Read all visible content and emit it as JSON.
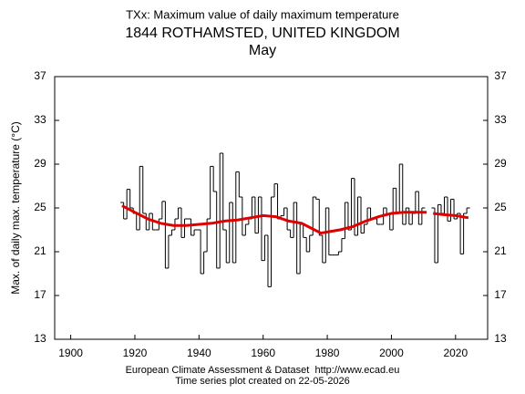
{
  "chart_data": {
    "type": "line",
    "title": "TXx: Maximum value of daily maximum temperature",
    "subtitle": "1844 ROTHAMSTED, UNITED KINGDOM",
    "period": "May",
    "y_label": "Max. of daily max. temperature (°C)",
    "footer": [
      "European Climate Assessment & Dataset  http://www.ecad.eu",
      "Time series plot created on 22-05-2026"
    ],
    "xlim": [
      1895,
      2030
    ],
    "xticks": [
      1900,
      1920,
      1940,
      1960,
      1980,
      2000,
      2020
    ],
    "ylim": [
      13,
      37
    ],
    "yticks": [
      13,
      17,
      21,
      25,
      29,
      33,
      37
    ],
    "y2lim": [
      13,
      37
    ],
    "y2ticks": [
      13,
      17,
      21,
      25,
      29,
      33,
      37
    ],
    "series": [
      {
        "style": "step",
        "color": "#000000",
        "x": [
          1916,
          1917,
          1918,
          1919,
          1920,
          1921,
          1922,
          1923,
          1924,
          1925,
          1926,
          1927,
          1928,
          1929,
          1930,
          1931,
          1932,
          1933,
          1934,
          1935,
          1936,
          1937,
          1938,
          1939,
          1940,
          1941,
          1942,
          1943,
          1944,
          1945,
          1946,
          1947,
          1948,
          1949,
          1950,
          1951,
          1952,
          1953,
          1954,
          1955,
          1956,
          1957,
          1958,
          1959,
          1960,
          1961,
          1962,
          1963,
          1964,
          1965,
          1966,
          1967,
          1968,
          1969,
          1970,
          1971,
          1972,
          1973,
          1974,
          1975,
          1976,
          1977,
          1978,
          1979,
          1980,
          1981,
          1982,
          1983,
          1984,
          1985,
          1986,
          1987,
          1988,
          1989,
          1990,
          1991,
          1992,
          1993,
          1994,
          1995,
          1996,
          1997,
          1998,
          1999,
          2000,
          2001,
          2002,
          2003,
          2004,
          2005,
          2006,
          2007,
          2008,
          2009,
          2010,
          2011,
          2012,
          2013,
          2014,
          2015,
          2016,
          2017,
          2018,
          2019,
          2020,
          2021,
          2022,
          2023,
          2024
        ],
        "values": [
          25.5,
          24.0,
          26.7,
          25.0,
          24.5,
          23.0,
          28.8,
          24.5,
          23.0,
          24.5,
          23.0,
          23.0,
          24.0,
          25.6,
          19.5,
          22.5,
          23.0,
          24.0,
          25.0,
          22.3,
          24.0,
          24.0,
          22.5,
          23.0,
          23.0,
          19.0,
          21.0,
          24.0,
          28.8,
          26.5,
          19.5,
          30.0,
          23.0,
          20.0,
          25.5,
          20.0,
          28.3,
          26.0,
          22.5,
          23.5,
          24.0,
          26.0,
          22.7,
          26.0,
          20.2,
          22.5,
          17.8,
          26.0,
          27.2,
          24.0,
          24.3,
          25.0,
          23.0,
          22.3,
          25.5,
          19.0,
          23.5,
          22.3,
          21.0,
          22.5,
          26.0,
          25.8,
          22.5,
          20.0,
          25.0,
          20.7,
          20.7,
          20.7,
          21.0,
          22.2,
          25.5,
          23.0,
          27.7,
          22.5,
          26.0,
          22.7,
          23.5,
          25.0,
          24.0,
          24.0,
          23.5,
          23.5,
          25.0,
          24.5,
          23.0,
          26.8,
          24.5,
          29.0,
          23.5,
          25.0,
          23.5,
          24.5,
          26.5,
          23.5,
          25.0,
          null,
          null,
          25.0,
          20.0,
          25.3,
          24.5,
          26.0,
          23.8,
          25.8,
          24.0,
          24.5,
          20.8,
          24.5,
          25.0
        ]
      },
      {
        "style": "smooth",
        "color": "#e00000",
        "x": [
          1916,
          1920,
          1924,
          1928,
          1932,
          1936,
          1940,
          1944,
          1948,
          1952,
          1956,
          1960,
          1964,
          1968,
          1972,
          1976,
          1978,
          1980,
          1984,
          1988,
          1992,
          1996,
          2000,
          2004,
          2008,
          2011,
          2012,
          2013,
          2016,
          2020,
          2024
        ],
        "values": [
          25.2,
          24.6,
          24.0,
          23.6,
          23.4,
          23.4,
          23.5,
          23.6,
          23.8,
          23.9,
          24.1,
          24.3,
          24.2,
          23.8,
          23.6,
          23.0,
          22.7,
          22.8,
          23.0,
          23.3,
          23.8,
          24.2,
          24.5,
          24.6,
          24.6,
          24.6,
          null,
          24.5,
          24.4,
          24.3,
          24.1
        ]
      }
    ]
  }
}
